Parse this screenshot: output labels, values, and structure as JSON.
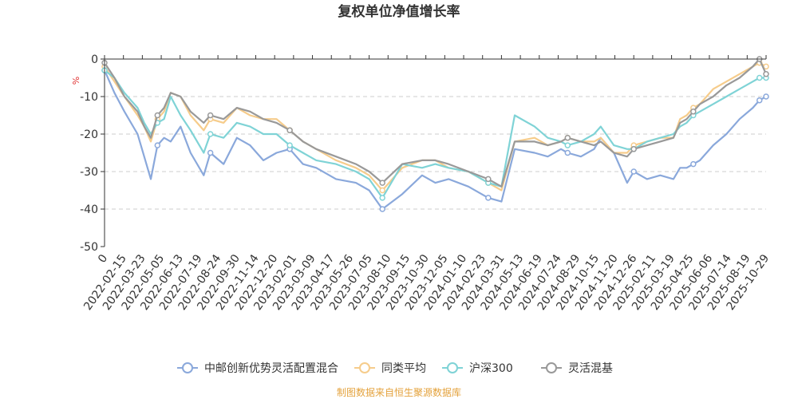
{
  "chart_data": {
    "type": "line",
    "title": "复权单位净值增长率",
    "ylabel": "%",
    "ylim": [
      -50,
      0
    ],
    "yticks": [
      0,
      -10,
      -20,
      -30,
      -40,
      -50
    ],
    "x_range": [
      0,
      100
    ],
    "x_zero_label": "0",
    "x_tick_labels": [
      "2022-02-15",
      "2022-03-23",
      "2022-05-05",
      "2022-06-13",
      "2022-07-19",
      "2022-08-24",
      "2022-09-30",
      "2022-11-14",
      "2022-12-20",
      "2023-02-01",
      "2023-03-09",
      "2023-04-17",
      "2023-05-26",
      "2023-07-05",
      "2023-08-10",
      "2023-09-15",
      "2023-10-30",
      "2023-12-05",
      "2024-01-10",
      "2024-02-23",
      "2024-03-31",
      "2024-05-13",
      "2024-06-19",
      "2024-07-24",
      "2024-08-29",
      "2024-10-15",
      "2024-11-20",
      "2024-12-26",
      "2025-02-11",
      "2025-03-19",
      "2025-04-25",
      "2025-06-06",
      "2025-07-14",
      "2025-08-19",
      "2025-10-29"
    ],
    "grid": true,
    "legend_position": "bottom",
    "series": [
      {
        "name": "中邮创新优势灵活配置混合",
        "color": "#8aa8db",
        "x": [
          0,
          1.5,
          3,
          5,
          6,
          7,
          8,
          9,
          10,
          11.5,
          13,
          15,
          16,
          18,
          20,
          22,
          24,
          26,
          28,
          30,
          32,
          35,
          38,
          40,
          42,
          45,
          48,
          50,
          52,
          55,
          58,
          60,
          62,
          65,
          67,
          69,
          70,
          72,
          74,
          75,
          77,
          79,
          80,
          82,
          84,
          86,
          87,
          88,
          89,
          90,
          92,
          94,
          96,
          98,
          99,
          100
        ],
        "y": [
          -3,
          -9,
          -14,
          -20,
          -26,
          -32,
          -23,
          -21,
          -22,
          -18,
          -25,
          -31,
          -25,
          -28,
          -21,
          -23,
          -27,
          -25,
          -24,
          -28,
          -29,
          -32,
          -33,
          -35,
          -40,
          -36,
          -31,
          -33,
          -32,
          -34,
          -37,
          -38,
          -24,
          -25,
          -26,
          -24,
          -25,
          -26,
          -24,
          -21,
          -25,
          -33,
          -30,
          -32,
          -31,
          -32,
          -29,
          -29,
          -28,
          -27,
          -23,
          -20,
          -16,
          -13,
          -11,
          -10
        ]
      },
      {
        "name": "同类平均",
        "color": "#f6cc8b",
        "x": [
          0,
          1.5,
          3,
          5,
          6,
          7,
          8,
          9,
          10,
          11.5,
          13,
          15,
          16,
          18,
          20,
          22,
          24,
          26,
          28,
          30,
          32,
          35,
          38,
          40,
          42,
          45,
          48,
          50,
          52,
          55,
          58,
          60,
          62,
          65,
          67,
          69,
          70,
          72,
          74,
          75,
          77,
          79,
          80,
          82,
          84,
          86,
          87,
          88,
          89,
          90,
          92,
          94,
          96,
          98,
          99,
          100
        ],
        "y": [
          -2,
          -6,
          -10,
          -15,
          -18,
          -22,
          -16,
          -14,
          -9,
          -10,
          -15,
          -19,
          -16,
          -17,
          -13,
          -15,
          -16,
          -16,
          -19,
          -22,
          -24,
          -27,
          -29,
          -31,
          -35,
          -29,
          -27,
          -27,
          -29,
          -30,
          -33,
          -35,
          -22,
          -21,
          -23,
          -22,
          -21,
          -22,
          -22,
          -21,
          -25,
          -25,
          -23,
          -22,
          -21,
          -21,
          -16,
          -15,
          -13,
          -12,
          -8,
          -6,
          -4,
          -2,
          -1,
          -2
        ]
      },
      {
        "name": "沪深300",
        "color": "#7fd3d6",
        "x": [
          0,
          1.5,
          3,
          5,
          6,
          7,
          8,
          9,
          10,
          11.5,
          13,
          15,
          16,
          18,
          20,
          22,
          24,
          26,
          28,
          30,
          32,
          35,
          38,
          40,
          42,
          45,
          48,
          50,
          52,
          55,
          58,
          60,
          62,
          65,
          67,
          69,
          70,
          72,
          74,
          75,
          77,
          79,
          80,
          82,
          84,
          86,
          87,
          88,
          89,
          90,
          92,
          94,
          96,
          98,
          99,
          100
        ],
        "y": [
          -3,
          -5,
          -9,
          -13,
          -17,
          -20,
          -17,
          -16,
          -10,
          -15,
          -19,
          -25,
          -20,
          -21,
          -17,
          -18,
          -20,
          -20,
          -23,
          -25,
          -27,
          -28,
          -30,
          -32,
          -37,
          -28,
          -29,
          -28,
          -29,
          -30,
          -33,
          -34,
          -15,
          -18,
          -21,
          -22,
          -23,
          -22,
          -20,
          -18,
          -23,
          -24,
          -24,
          -22,
          -21,
          -20,
          -18,
          -17,
          -15,
          -14,
          -12,
          -10,
          -8,
          -6,
          -5,
          -5
        ]
      },
      {
        "name": "灵活混基",
        "color": "#999999",
        "x": [
          0,
          1.5,
          3,
          5,
          6,
          7,
          8,
          9,
          10,
          11.5,
          13,
          15,
          16,
          18,
          20,
          22,
          24,
          26,
          28,
          30,
          32,
          35,
          38,
          40,
          42,
          45,
          48,
          50,
          52,
          55,
          58,
          60,
          62,
          65,
          67,
          69,
          70,
          72,
          74,
          75,
          77,
          79,
          80,
          82,
          84,
          86,
          87,
          88,
          89,
          90,
          92,
          94,
          96,
          98,
          99,
          100
        ],
        "y": [
          -1,
          -5,
          -10,
          -14,
          -18,
          -21,
          -15,
          -13,
          -9,
          -10,
          -14,
          -17,
          -15,
          -16,
          -13,
          -14,
          -16,
          -17,
          -19,
          -22,
          -24,
          -26,
          -28,
          -30,
          -33,
          -28,
          -27,
          -27,
          -28,
          -30,
          -32,
          -34,
          -22,
          -22,
          -23,
          -22,
          -21,
          -22,
          -23,
          -22,
          -25,
          -26,
          -24,
          -23,
          -22,
          -21,
          -17,
          -16,
          -14,
          -12,
          -10,
          -7,
          -5,
          -2,
          0,
          -4
        ]
      }
    ]
  },
  "footer": {
    "source": "制图数据来自恒生聚源数据库"
  }
}
